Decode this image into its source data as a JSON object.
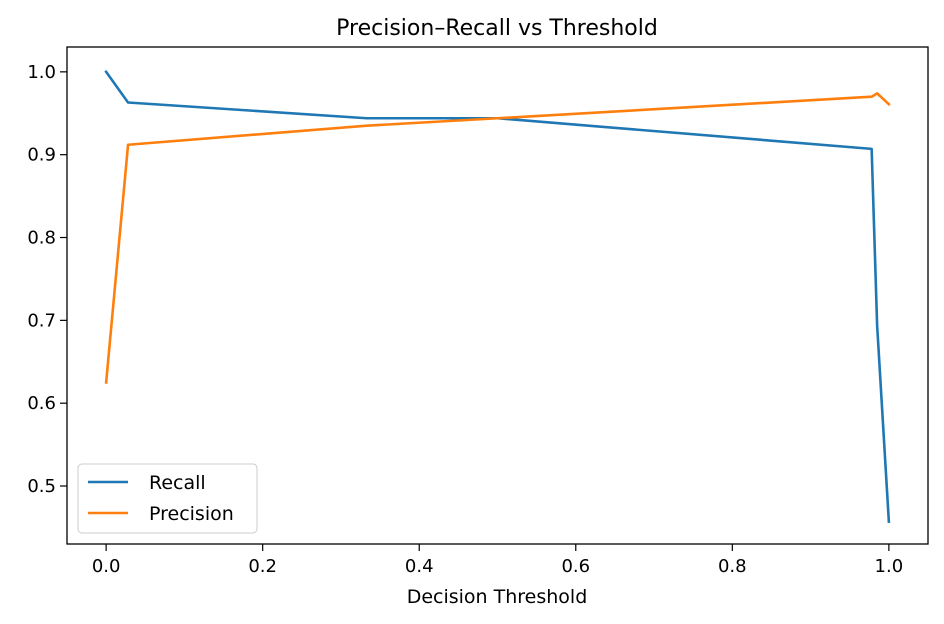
{
  "chart_data": {
    "type": "line",
    "title": "Precision–Recall vs Threshold",
    "xlabel": "Decision Threshold",
    "ylabel": "",
    "xlim": [
      -0.05,
      1.05
    ],
    "ylim": [
      0.43,
      1.03
    ],
    "xticks": [
      0.0,
      0.2,
      0.4,
      0.6,
      0.8,
      1.0
    ],
    "xtick_labels": [
      "0.0",
      "0.2",
      "0.4",
      "0.6",
      "0.8",
      "1.0"
    ],
    "yticks": [
      0.5,
      0.6,
      0.7,
      0.8,
      0.9,
      1.0
    ],
    "ytick_labels": [
      "0.5",
      "0.6",
      "0.7",
      "0.8",
      "0.9",
      "1.0"
    ],
    "grid": false,
    "legend": "lower-left",
    "series": [
      {
        "name": "Recall",
        "color": "#1f77b4",
        "x": [
          0.0,
          0.028,
          0.333,
          0.5,
          0.978,
          0.985,
          1.0
        ],
        "y": [
          1.0,
          0.963,
          0.944,
          0.944,
          0.907,
          0.694,
          0.457
        ]
      },
      {
        "name": "Precision",
        "color": "#ff7f0e",
        "x": [
          0.0,
          0.028,
          0.333,
          0.5,
          0.978,
          0.985,
          1.0
        ],
        "y": [
          0.625,
          0.912,
          0.935,
          0.944,
          0.97,
          0.974,
          0.961
        ]
      }
    ]
  }
}
